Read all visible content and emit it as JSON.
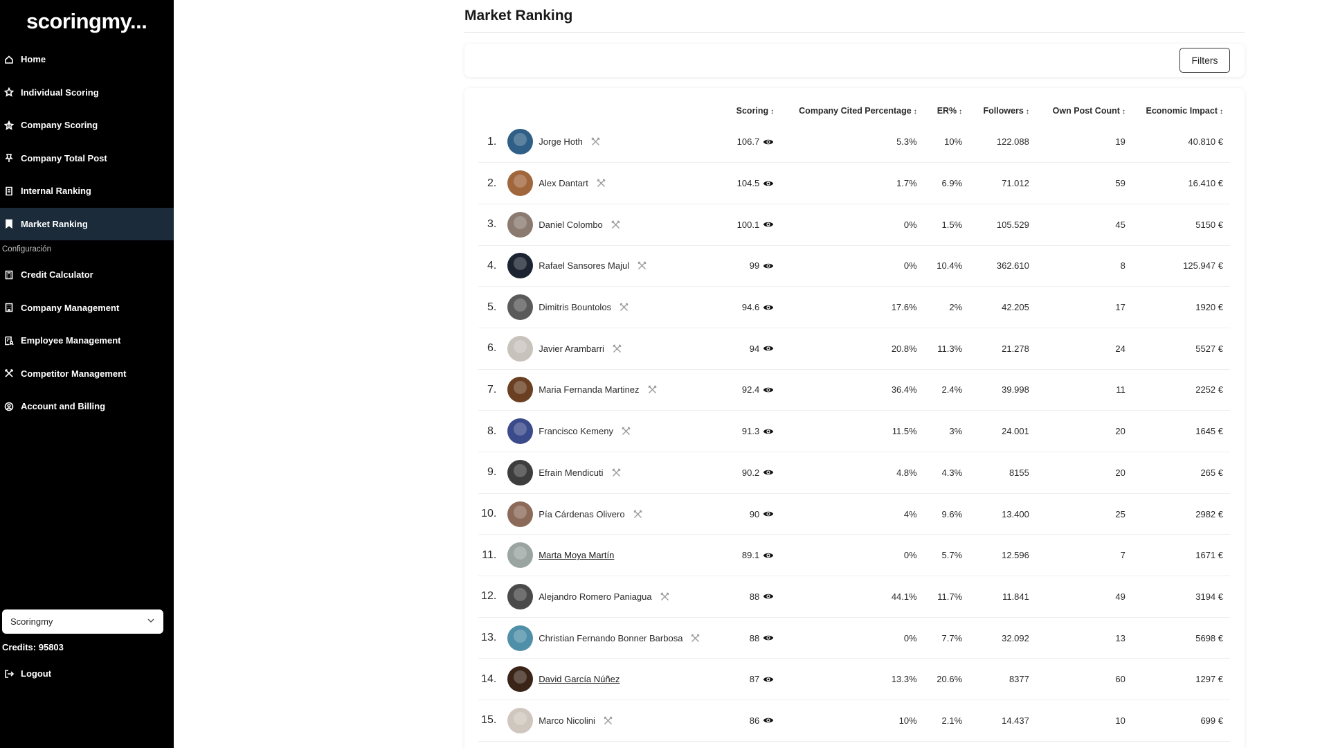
{
  "logo": "scoringmy...",
  "sidebar": {
    "items": [
      {
        "label": "Home",
        "icon": "home-icon"
      },
      {
        "label": "Individual Scoring",
        "icon": "star-outline-icon"
      },
      {
        "label": "Company Scoring",
        "icon": "star-half-icon"
      },
      {
        "label": "Company Total Post",
        "icon": "pin-icon"
      },
      {
        "label": "Internal Ranking",
        "icon": "bookmark-list-icon"
      },
      {
        "label": "Market Ranking",
        "icon": "bookmark-filled-icon",
        "active": true
      }
    ],
    "section_label": "Configuración",
    "config_items": [
      {
        "label": "Credit Calculator",
        "icon": "calculator-icon"
      },
      {
        "label": "Company Management",
        "icon": "building-icon"
      },
      {
        "label": "Employee Management",
        "icon": "employees-icon"
      },
      {
        "label": "Competitor Management",
        "icon": "swords-icon"
      },
      {
        "label": "Account and Billing",
        "icon": "account-circle-icon"
      }
    ],
    "company_select": "Scoringmy",
    "credits": "Credits: 95803",
    "logout": "Logout"
  },
  "page": {
    "title": "Market Ranking",
    "filters_label": "Filters"
  },
  "table": {
    "headers": {
      "scoring": "Scoring",
      "cited": "Company Cited Percentage",
      "er": "ER%",
      "followers": "Followers",
      "posts": "Own Post Count",
      "impact": "Economic Impact"
    },
    "rows": [
      {
        "rank": "1.",
        "name": "Jorge Hoth",
        "link": false,
        "score": "106.7",
        "cited": "5.3%",
        "er": "10%",
        "followers": "122.088",
        "posts": "19",
        "impact": "40.810 €",
        "avatar_color": "#2f5f86"
      },
      {
        "rank": "2.",
        "name": "Alex Dantart",
        "link": false,
        "score": "104.5",
        "cited": "1.7%",
        "er": "6.9%",
        "followers": "71.012",
        "posts": "59",
        "impact": "16.410 €",
        "avatar_color": "#a0663c"
      },
      {
        "rank": "3.",
        "name": "Daniel Colombo",
        "link": false,
        "score": "100.1",
        "cited": "0%",
        "er": "1.5%",
        "followers": "105.529",
        "posts": "45",
        "impact": "5150 €",
        "avatar_color": "#8a7a70"
      },
      {
        "rank": "4.",
        "name": "Rafael Sansores Majul",
        "link": false,
        "score": "99",
        "cited": "0%",
        "er": "10.4%",
        "followers": "362.610",
        "posts": "8",
        "impact": "125.947 €",
        "avatar_color": "#1b2430"
      },
      {
        "rank": "5.",
        "name": "Dimitris Bountolos",
        "link": false,
        "score": "94.6",
        "cited": "17.6%",
        "er": "2%",
        "followers": "42.205",
        "posts": "17",
        "impact": "1920 €",
        "avatar_color": "#5a5a5a"
      },
      {
        "rank": "6.",
        "name": "Javier Arambarri",
        "link": false,
        "score": "94",
        "cited": "20.8%",
        "er": "11.3%",
        "followers": "21.278",
        "posts": "24",
        "impact": "5527 €",
        "avatar_color": "#c8c2bc"
      },
      {
        "rank": "7.",
        "name": "Maria Fernanda Martinez",
        "link": false,
        "score": "92.4",
        "cited": "36.4%",
        "er": "2.4%",
        "followers": "39.998",
        "posts": "11",
        "impact": "2252 €",
        "avatar_color": "#6a3f22"
      },
      {
        "rank": "8.",
        "name": "Francisco Kemeny",
        "link": false,
        "score": "91.3",
        "cited": "11.5%",
        "er": "3%",
        "followers": "24.001",
        "posts": "20",
        "impact": "1645 €",
        "avatar_color": "#3a4a8a"
      },
      {
        "rank": "9.",
        "name": "Efrain Mendicuti",
        "link": false,
        "score": "90.2",
        "cited": "4.8%",
        "er": "4.3%",
        "followers": "8155",
        "posts": "20",
        "impact": "265 €",
        "avatar_color": "#3d3d3d"
      },
      {
        "rank": "10.",
        "name": "Pía Cárdenas Olivero",
        "link": false,
        "score": "90",
        "cited": "4%",
        "er": "9.6%",
        "followers": "13.400",
        "posts": "25",
        "impact": "2982 €",
        "avatar_color": "#8c6a5a"
      },
      {
        "rank": "11.",
        "name": "Marta Moya Martín",
        "link": true,
        "score": "89.1",
        "cited": "0%",
        "er": "5.7%",
        "followers": "12.596",
        "posts": "7",
        "impact": "1671 €",
        "avatar_color": "#9aa4a0"
      },
      {
        "rank": "12.",
        "name": "Alejandro Romero Paniagua",
        "link": false,
        "score": "88",
        "cited": "44.1%",
        "er": "11.7%",
        "followers": "11.841",
        "posts": "49",
        "impact": "3194 €",
        "avatar_color": "#4a4a4a"
      },
      {
        "rank": "13.",
        "name": "Christian Fernando Bonner Barbosa",
        "link": false,
        "score": "88",
        "cited": "0%",
        "er": "7.7%",
        "followers": "32.092",
        "posts": "13",
        "impact": "5698 €",
        "avatar_color": "#4f8fa8"
      },
      {
        "rank": "14.",
        "name": "David García Núñez",
        "link": true,
        "score": "87",
        "cited": "13.3%",
        "er": "20.6%",
        "followers": "8377",
        "posts": "60",
        "impact": "1297 €",
        "avatar_color": "#3a2418"
      },
      {
        "rank": "15.",
        "name": "Marco Nicolini",
        "link": false,
        "score": "86",
        "cited": "10%",
        "er": "2.1%",
        "followers": "14.437",
        "posts": "10",
        "impact": "699 €",
        "avatar_color": "#cfc7be"
      }
    ]
  },
  "colors": {
    "sidebar_bg": "#000000",
    "active_item_bg": "#1b2b3a"
  }
}
